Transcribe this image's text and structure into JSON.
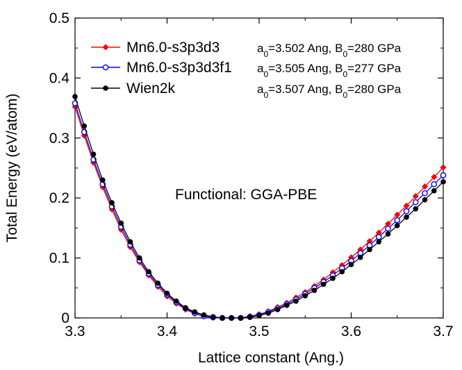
{
  "chart_data": {
    "type": "line",
    "title": "",
    "xlabel": "Lattice constant (Ang.)",
    "ylabel": "Total Energy (eV/atom)",
    "xlim": [
      3.3,
      3.7
    ],
    "ylim": [
      0,
      0.5
    ],
    "xticks": [
      3.3,
      3.4,
      3.5,
      3.6,
      3.7
    ],
    "yticks": [
      0,
      0.1,
      0.2,
      0.3,
      0.4,
      0.5
    ],
    "xtick_labels": [
      "3.3",
      "3.4",
      "3.5",
      "3.6",
      "3.7"
    ],
    "ytick_labels": [
      "0",
      "0.1",
      "0.2",
      "0.3",
      "0.4",
      "0.5"
    ],
    "grid": false,
    "legend_position": "top-left",
    "annotation": "Functional: GGA-PBE",
    "series": [
      {
        "name": "Mn6.0-s3p3d3",
        "color": "#ff0000",
        "marker": "filled-diamond",
        "params": {
          "a0": "3.502",
          "B0": "280"
        },
        "x": [
          3.3,
          3.31,
          3.32,
          3.33,
          3.34,
          3.35,
          3.36,
          3.37,
          3.38,
          3.39,
          3.4,
          3.41,
          3.42,
          3.43,
          3.44,
          3.45,
          3.46,
          3.47,
          3.48,
          3.49,
          3.5,
          3.51,
          3.52,
          3.53,
          3.54,
          3.55,
          3.56,
          3.57,
          3.58,
          3.59,
          3.6,
          3.61,
          3.62,
          3.63,
          3.64,
          3.65,
          3.66,
          3.67,
          3.68,
          3.69,
          3.7
        ],
        "y": [
          0.352,
          0.304,
          0.259,
          0.218,
          0.181,
          0.147,
          0.118,
          0.093,
          0.071,
          0.052,
          0.036,
          0.024,
          0.014,
          0.007,
          0.003,
          0.0005,
          0.0,
          0.0,
          0.0,
          0.003,
          0.006,
          0.011,
          0.018,
          0.025,
          0.034,
          0.043,
          0.053,
          0.064,
          0.076,
          0.088,
          0.101,
          0.114,
          0.128,
          0.142,
          0.157,
          0.172,
          0.187,
          0.203,
          0.219,
          0.235,
          0.251
        ]
      },
      {
        "name": "Mn6.0-s3p3d3f1",
        "color": "#0000ff",
        "marker": "open-circle",
        "params": {
          "a0": "3.505",
          "B0": "277"
        },
        "x": [
          3.3,
          3.31,
          3.32,
          3.33,
          3.34,
          3.35,
          3.36,
          3.37,
          3.38,
          3.39,
          3.4,
          3.41,
          3.42,
          3.43,
          3.44,
          3.45,
          3.46,
          3.47,
          3.48,
          3.49,
          3.5,
          3.51,
          3.52,
          3.53,
          3.54,
          3.55,
          3.56,
          3.57,
          3.58,
          3.59,
          3.6,
          3.61,
          3.62,
          3.63,
          3.64,
          3.65,
          3.66,
          3.67,
          3.68,
          3.69,
          3.7
        ],
        "y": [
          0.358,
          0.31,
          0.264,
          0.223,
          0.186,
          0.152,
          0.122,
          0.096,
          0.074,
          0.055,
          0.039,
          0.026,
          0.016,
          0.008,
          0.003,
          0.001,
          0.0,
          0.0,
          0.0,
          0.002,
          0.005,
          0.01,
          0.016,
          0.023,
          0.031,
          0.04,
          0.05,
          0.06,
          0.071,
          0.083,
          0.095,
          0.108,
          0.121,
          0.135,
          0.149,
          0.163,
          0.178,
          0.193,
          0.208,
          0.223,
          0.238
        ]
      },
      {
        "name": "Wien2k",
        "color": "#000000",
        "marker": "filled-circle",
        "params": {
          "a0": "3.507",
          "B0": "280"
        },
        "x": [
          3.3,
          3.31,
          3.32,
          3.33,
          3.34,
          3.35,
          3.36,
          3.37,
          3.38,
          3.39,
          3.4,
          3.41,
          3.42,
          3.43,
          3.44,
          3.45,
          3.46,
          3.47,
          3.48,
          3.49,
          3.5,
          3.51,
          3.52,
          3.53,
          3.54,
          3.55,
          3.56,
          3.57,
          3.58,
          3.59,
          3.6,
          3.61,
          3.62,
          3.63,
          3.64,
          3.65,
          3.66,
          3.67,
          3.68,
          3.69,
          3.7
        ],
        "y": [
          0.369,
          0.32,
          0.273,
          0.23,
          0.192,
          0.158,
          0.127,
          0.1,
          0.077,
          0.058,
          0.041,
          0.028,
          0.017,
          0.01,
          0.005,
          0.002,
          0.0,
          0.0,
          0.0,
          0.001,
          0.004,
          0.008,
          0.014,
          0.021,
          0.028,
          0.037,
          0.046,
          0.056,
          0.066,
          0.077,
          0.089,
          0.101,
          0.114,
          0.127,
          0.14,
          0.154,
          0.168,
          0.182,
          0.197,
          0.212,
          0.227
        ]
      }
    ]
  }
}
